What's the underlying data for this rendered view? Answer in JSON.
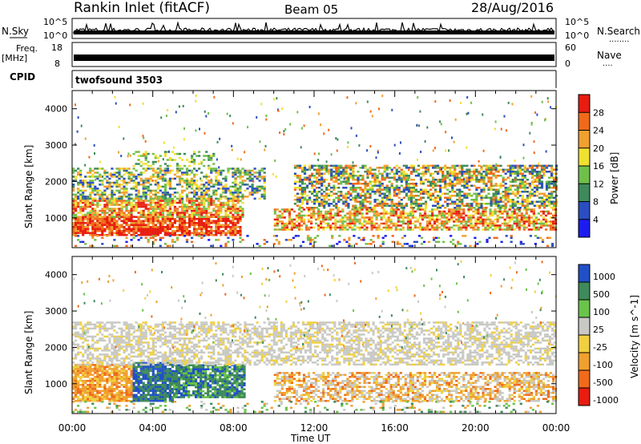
{
  "header": {
    "station": "Rankin Inlet (fitACF)",
    "beam": "Beam 05",
    "date": "28/Aug/2016"
  },
  "panels": {
    "nsky": {
      "label": "N.Sky",
      "tick_top": "10^5",
      "tick_bottom": "10^0",
      "right_label": "N.Search",
      "right_dots": "........"
    },
    "freq": {
      "label": "Freq.",
      "unit": "[MHz]",
      "tick_top": "18",
      "tick_bottom": "8",
      "right_tick_top": "60",
      "right_tick_bottom": "0",
      "right_label": "Nave",
      "right_dots": "...."
    },
    "cpid": {
      "label": "CPID",
      "text": "twofsound 3503"
    }
  },
  "axes": {
    "ylabel": "Slant Range [km]",
    "xlabel": "Time UT",
    "y_ticks": [
      "1000",
      "2000",
      "3000",
      "4000"
    ],
    "x_ticks": [
      "00:00",
      "04:00",
      "08:00",
      "12:00",
      "16:00",
      "20:00",
      "00:00"
    ]
  },
  "colors": {
    "power": [
      "#1c1cf0",
      "#2a4ec0",
      "#3f8a5a",
      "#6fc04a",
      "#f0e030",
      "#f0a030",
      "#f06a1c",
      "#e81c10"
    ],
    "velocity": [
      "#e81c10",
      "#f06a1c",
      "#f0a030",
      "#f0d040",
      "#c8c8c4",
      "#6ac44a",
      "#3f8a5a",
      "#2050c8"
    ]
  },
  "chart_data": [
    {
      "type": "line",
      "title": "N.Sky",
      "x_range_hours": [
        0,
        24
      ],
      "y_scale": "log",
      "y_range": [
        1,
        100000
      ]
    },
    {
      "type": "line",
      "title": "Freq.",
      "x_range_hours": [
        0,
        24
      ],
      "y_range_mhz": [
        8,
        18
      ],
      "y_range_nave": [
        0,
        60
      ]
    },
    {
      "type": "heatmap",
      "quantity": "Power",
      "colorbar_label": "Power [dB]",
      "colorbar_ticks": [
        "4",
        "8",
        "12",
        "16",
        "20",
        "24",
        "28"
      ],
      "x_range_hours": [
        0,
        24
      ],
      "y_range_km": [
        180,
        4500
      ],
      "features": [
        {
          "t_start": 0.0,
          "t_end": 8.2,
          "r_min": 600,
          "r_max": 1000,
          "level": "high"
        },
        {
          "t_start": 0.0,
          "t_end": 8.5,
          "r_min": 1100,
          "r_max": 2300,
          "level": "mid"
        },
        {
          "t_start": 10.0,
          "t_end": 24.0,
          "r_min": 800,
          "r_max": 1200,
          "level": "mid"
        },
        {
          "t_start": 12.0,
          "t_end": 24.0,
          "r_min": 1200,
          "r_max": 2400,
          "level": "mixed"
        }
      ]
    },
    {
      "type": "heatmap",
      "quantity": "Velocity",
      "colorbar_label": "Velocity [m s^-1]",
      "colorbar_ticks": [
        "1000",
        "500",
        "100",
        "25",
        "-25",
        "-100",
        "-500",
        "-1000"
      ],
      "x_range_hours": [
        0,
        24
      ],
      "y_range_km": [
        180,
        4500
      ],
      "features": [
        {
          "t_start": 0.0,
          "t_end": 3.0,
          "r_min": 500,
          "r_max": 1500,
          "level": "negative"
        },
        {
          "t_start": 3.0,
          "t_end": 5.0,
          "r_min": 500,
          "r_max": 1600,
          "level": "positive-high"
        },
        {
          "t_start": 5.0,
          "t_end": 8.5,
          "r_min": 600,
          "r_max": 1500,
          "level": "positive"
        },
        {
          "t_start": 8.0,
          "t_end": 24.0,
          "r_min": 1400,
          "r_max": 2700,
          "level": "near-zero"
        },
        {
          "t_start": 10.0,
          "t_end": 24.0,
          "r_min": 500,
          "r_max": 1200,
          "level": "mixed"
        }
      ]
    }
  ]
}
